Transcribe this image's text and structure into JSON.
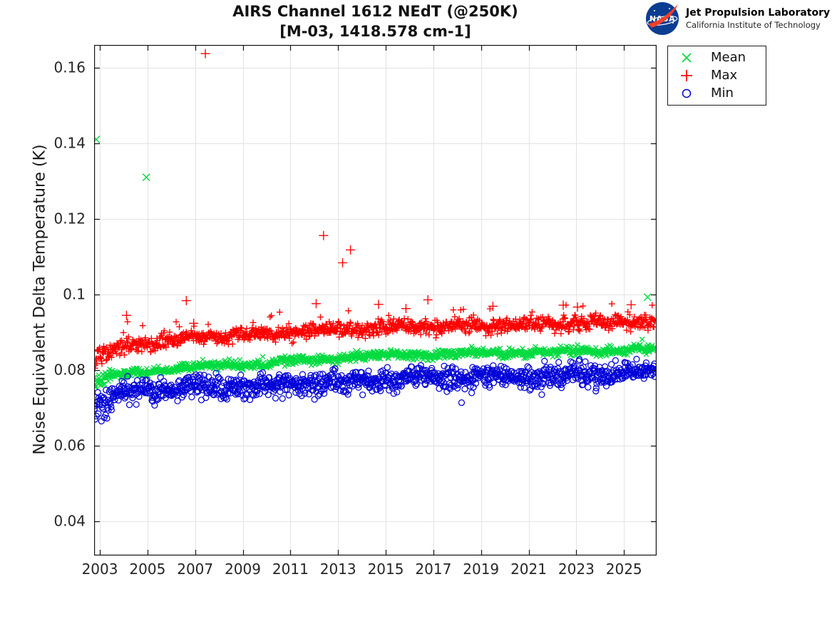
{
  "header": {
    "title_line1": "AIRS Channel 1612 NEdT (@250K)",
    "title_line2": "[M-03, 1418.578 cm-1]",
    "logo": {
      "agency": "NASA",
      "name": "Jet Propulsion Laboratory",
      "subname": "California Institute of Technology",
      "meatball_blue": "#0b3d91",
      "swoosh_red": "#fc3d21"
    }
  },
  "chart_data": {
    "type": "scatter",
    "title": "AIRS Channel 1612 NEdT (@250K) [M-03, 1418.578 cm-1]",
    "xlabel": "",
    "ylabel": "Noise Equivalent Delta Temperature (K)",
    "xlim": [
      2002.76,
      2026.37
    ],
    "ylim": [
      0.031,
      0.166
    ],
    "xticks": [
      2003,
      2005,
      2007,
      2009,
      2011,
      2013,
      2015,
      2017,
      2019,
      2021,
      2023,
      2025
    ],
    "yticks": [
      0.04,
      0.06,
      0.08,
      0.1,
      0.12,
      0.14,
      0.16
    ],
    "ytick_labels": [
      "0.04",
      "0.06",
      "0.08",
      "0.1",
      "0.12",
      "0.14",
      "0.16"
    ],
    "grid": true,
    "grid_color": "#e3e3e3",
    "axis_color": "#141414",
    "tick_label_color": "#262626",
    "legend": {
      "position": "northeast-outside",
      "entries": [
        {
          "label": "Mean",
          "marker": "x",
          "color": "#00db40"
        },
        {
          "label": "Max",
          "marker": "+",
          "color": "#ff0000"
        },
        {
          "label": "Min",
          "marker": "o",
          "color": "#0000d9"
        }
      ]
    },
    "sampling_per_year": 52,
    "x_start": 2002.78,
    "x_end": 2026.3,
    "series": [
      {
        "name": "Mean",
        "marker": "x",
        "color": "#00db40",
        "size": 3.4,
        "outlier_size": 5.0,
        "sigma": 0.00055,
        "spike": {
          "p": 0.01,
          "min": 0.0006,
          "max": 0.002,
          "sign": 1
        },
        "wiggle": [
          [
            0.00025,
            1.0,
            0.2
          ],
          [
            0.0003,
            3.7,
            1.1
          ]
        ],
        "trend": [
          [
            2002.78,
            0.0768
          ],
          [
            2003.2,
            0.0778
          ],
          [
            2004,
            0.079
          ],
          [
            2005,
            0.0798
          ],
          [
            2006,
            0.0804
          ],
          [
            2007,
            0.0808
          ],
          [
            2008,
            0.0812
          ],
          [
            2009,
            0.0815
          ],
          [
            2010,
            0.0818
          ],
          [
            2011,
            0.0823
          ],
          [
            2012,
            0.0828
          ],
          [
            2013,
            0.0833
          ],
          [
            2014.6,
            0.0837
          ],
          [
            2014.85,
            0.0841
          ],
          [
            2016,
            0.0842
          ],
          [
            2018,
            0.0843
          ],
          [
            2020,
            0.0845
          ],
          [
            2022,
            0.0847
          ],
          [
            2024,
            0.0851
          ],
          [
            2026.3,
            0.0856
          ]
        ],
        "outliers": [
          [
            2002.85,
            0.141
          ],
          [
            2004.95,
            0.131
          ],
          [
            2013.78,
            0.0849
          ],
          [
            2025.99,
            0.0993
          ]
        ]
      },
      {
        "name": "Max",
        "marker": "+",
        "color": "#ff0000",
        "size": 4.4,
        "outlier_size": 6.5,
        "sigma": 0.00095,
        "spike": {
          "p": 0.03,
          "min": 0.0012,
          "max": 0.0052,
          "sign": 1
        },
        "wiggle": [
          [
            0.0003,
            1.0,
            0.5
          ],
          [
            0.00035,
            2.9,
            2.0
          ]
        ],
        "trend": [
          [
            2002.78,
            0.083
          ],
          [
            2003.2,
            0.0845
          ],
          [
            2004,
            0.0862
          ],
          [
            2005,
            0.0872
          ],
          [
            2006,
            0.088
          ],
          [
            2007,
            0.0886
          ],
          [
            2008,
            0.089
          ],
          [
            2009,
            0.0894
          ],
          [
            2010,
            0.0897
          ],
          [
            2011,
            0.09
          ],
          [
            2012,
            0.0903
          ],
          [
            2013,
            0.0907
          ],
          [
            2014.6,
            0.0909
          ],
          [
            2014.85,
            0.0914
          ],
          [
            2016,
            0.0914
          ],
          [
            2018,
            0.0916
          ],
          [
            2020,
            0.0919
          ],
          [
            2022,
            0.0922
          ],
          [
            2024,
            0.0926
          ],
          [
            2026.3,
            0.0931
          ]
        ],
        "outliers": [
          [
            2004.12,
            0.0945
          ],
          [
            2006.63,
            0.0984
          ],
          [
            2006.94,
            0.0924
          ],
          [
            2007.43,
            0.1637
          ],
          [
            2012.08,
            0.0976
          ],
          [
            2012.39,
            0.1156
          ],
          [
            2013.19,
            0.1084
          ],
          [
            2013.52,
            0.1118
          ],
          [
            2014.7,
            0.0974
          ],
          [
            2015.85,
            0.0963
          ],
          [
            2016.77,
            0.0986
          ],
          [
            2019.5,
            0.0969
          ],
          [
            2022.45,
            0.0972
          ],
          [
            2023.05,
            0.0967
          ],
          [
            2025.3,
            0.0973
          ]
        ]
      },
      {
        "name": "Min",
        "marker": "o",
        "color": "#0000d9",
        "size": 4.0,
        "outlier_size": 4.0,
        "sigma": 0.0014,
        "spike": {
          "p": 0.055,
          "min": 0.0006,
          "max": 0.0034,
          "sign": -1
        },
        "wiggle": [
          [
            0.0004,
            1.0,
            2.6
          ],
          [
            0.0005,
            3.1,
            0.7
          ]
        ],
        "trend": [
          [
            2002.78,
            0.0703
          ],
          [
            2003.2,
            0.0715
          ],
          [
            2003.6,
            0.073
          ],
          [
            2004,
            0.0739
          ],
          [
            2005,
            0.0748
          ],
          [
            2006,
            0.0752
          ],
          [
            2007,
            0.0755
          ],
          [
            2008,
            0.0757
          ],
          [
            2009,
            0.0759
          ],
          [
            2010,
            0.0761
          ],
          [
            2011,
            0.0763
          ],
          [
            2012,
            0.0765
          ],
          [
            2013,
            0.0767
          ],
          [
            2014.6,
            0.077
          ],
          [
            2014.85,
            0.0777
          ],
          [
            2016,
            0.0779
          ],
          [
            2018,
            0.0781
          ],
          [
            2020,
            0.0784
          ],
          [
            2022,
            0.0787
          ],
          [
            2024,
            0.079
          ],
          [
            2026.3,
            0.0794
          ]
        ],
        "outliers": []
      }
    ]
  },
  "layout_note": ""
}
